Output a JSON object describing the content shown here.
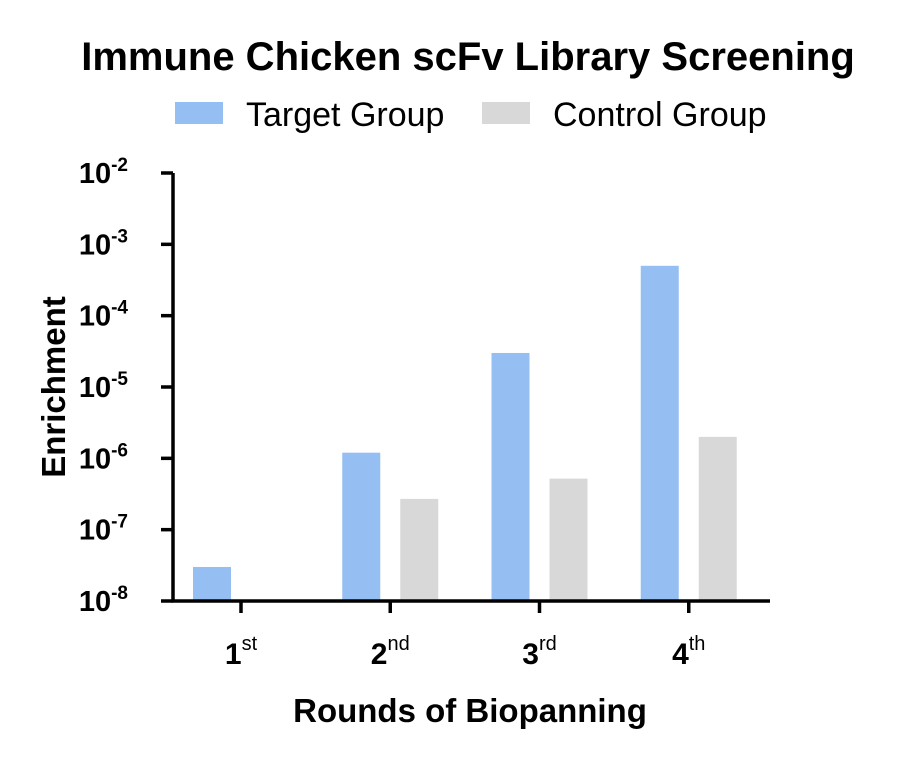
{
  "chart_data": {
    "type": "bar",
    "title": "Immune Chicken scFv Library Screening",
    "xlabel": "Rounds of Biopanning",
    "ylabel": "Enrichment",
    "yscale": "log",
    "ylim": [
      1e-08,
      0.01
    ],
    "y_ticks": [
      {
        "base": "10",
        "exp": "-8",
        "value": 1e-08
      },
      {
        "base": "10",
        "exp": "-7",
        "value": 1e-07
      },
      {
        "base": "10",
        "exp": "-6",
        "value": 1e-06
      },
      {
        "base": "10",
        "exp": "-5",
        "value": 1e-05
      },
      {
        "base": "10",
        "exp": "-4",
        "value": 0.0001
      },
      {
        "base": "10",
        "exp": "-3",
        "value": 0.001
      },
      {
        "base": "10",
        "exp": "-2",
        "value": 0.01
      }
    ],
    "categories": [
      {
        "main": "1",
        "sup": "st"
      },
      {
        "main": "2",
        "sup": "nd"
      },
      {
        "main": "3",
        "sup": "rd"
      },
      {
        "main": "4",
        "sup": "th"
      }
    ],
    "series": [
      {
        "name": "Target Group",
        "color": "#95bff2",
        "values": [
          3e-08,
          1.2e-06,
          3e-05,
          0.0005
        ]
      },
      {
        "name": "Control Group",
        "color": "#d8d8d8",
        "values": [
          null,
          2.7e-07,
          5.2e-07,
          2e-06
        ]
      }
    ],
    "legend_position": "top",
    "grid": false
  }
}
